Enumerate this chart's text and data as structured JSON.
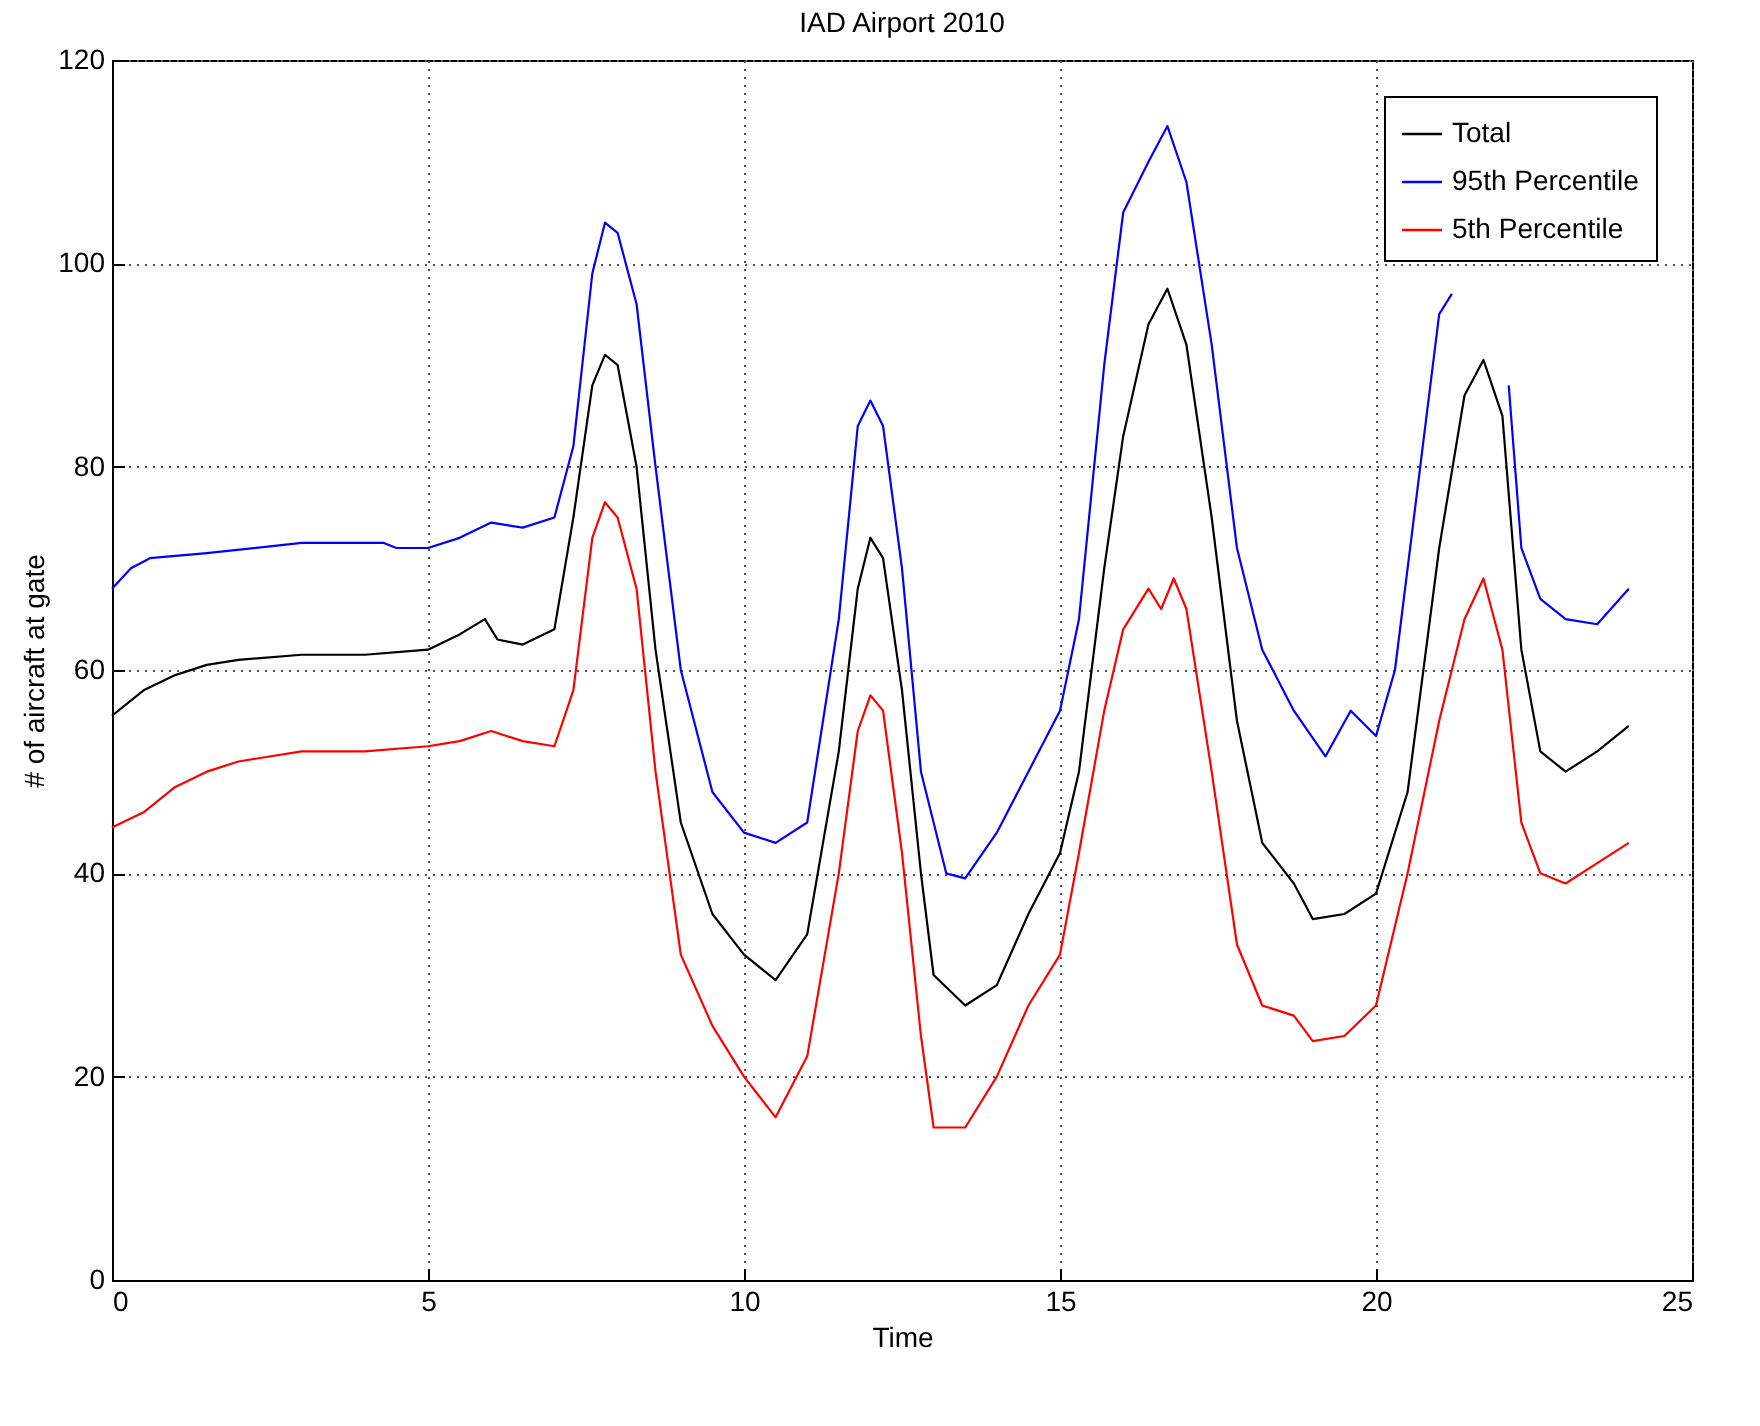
{
  "chart_data": {
    "type": "line",
    "title": "IAD Airport 2010",
    "xlabel": "Time",
    "ylabel": "# of aircraft at gate",
    "xlim": [
      0,
      25
    ],
    "xticks": [
      0,
      5,
      10,
      15,
      20,
      25
    ],
    "ylim": [
      0,
      120
    ],
    "yticks": [
      0,
      20,
      40,
      60,
      80,
      100,
      120
    ],
    "grid": true,
    "legend": "top right",
    "line_style": "solid",
    "series": [
      {
        "name": "Total",
        "color": "#000000",
        "x": [
          0,
          0.5,
          1,
          1.5,
          2,
          3,
          4,
          5,
          5.5,
          5.9,
          6.1,
          6.5,
          7,
          7.3,
          7.6,
          7.8,
          8,
          8.3,
          8.6,
          9,
          9.5,
          10,
          10.5,
          11,
          11.5,
          11.8,
          12,
          12.2,
          12.5,
          12.8,
          13,
          13.5,
          14,
          14.5,
          15,
          15.3,
          15.7,
          16,
          16.4,
          16.7,
          17,
          17.4,
          17.8,
          18.2,
          18.7,
          19,
          19.5,
          20,
          20.5,
          21,
          21.4,
          21.7,
          22,
          22.3,
          22.6,
          23,
          23.5,
          24
        ],
        "values": [
          55.5,
          58,
          59.5,
          60.5,
          61,
          61.5,
          61.5,
          62,
          63.5,
          65,
          63,
          62.5,
          64,
          75,
          88,
          91,
          90,
          80,
          62,
          45,
          36,
          32,
          29.5,
          34,
          52,
          68,
          73,
          71,
          58,
          40,
          30,
          27,
          29,
          36,
          42,
          50,
          70,
          83,
          94,
          97.5,
          92,
          75,
          55,
          43,
          39,
          35.5,
          36,
          38,
          48,
          72,
          87,
          90.5,
          85,
          62,
          52,
          50,
          52,
          54.5
        ]
      },
      {
        "name": "95th Percentile",
        "color": "#0000ff",
        "x": [
          0,
          0.3,
          0.6,
          1.5,
          3,
          4.3,
          4.5,
          5,
          5.5,
          6,
          6.5,
          7,
          7.3,
          7.6,
          7.8,
          8,
          8.3,
          8.6,
          9,
          9.5,
          10,
          10.5,
          11,
          11.5,
          11.8,
          12,
          12.2,
          12.5,
          12.8,
          13.2,
          13.5,
          14,
          14.5,
          15,
          15.3,
          15.7,
          16,
          16.4,
          16.7,
          17,
          17.4,
          17.8,
          18.2,
          18.7,
          19.2,
          19.6,
          20,
          20.3,
          20.7,
          21,
          21.2,
          21.7,
          22.1,
          22.3,
          22.6,
          23,
          23.5,
          24
        ],
        "values": [
          68,
          70,
          71,
          71.5,
          72.5,
          72.5,
          72,
          72,
          73,
          74.5,
          74,
          75,
          82,
          99,
          104,
          103,
          96,
          80,
          60,
          48,
          44,
          43,
          45,
          65,
          84,
          86.5,
          84,
          70,
          50,
          40,
          39.5,
          44,
          50,
          56,
          65,
          90,
          105,
          110,
          113.5,
          108,
          92,
          72,
          62,
          56,
          51.5,
          56,
          53.5,
          60,
          80,
          95,
          97,
          null,
          88,
          72,
          67,
          65,
          64.5,
          68
        ]
      },
      {
        "name": "5th Percentile",
        "color": "#ff0000",
        "x": [
          0,
          0.5,
          1,
          1.5,
          2,
          3,
          4,
          5,
          5.5,
          6,
          6.5,
          7,
          7.3,
          7.6,
          7.8,
          8,
          8.3,
          8.6,
          9,
          9.5,
          10,
          10.5,
          11,
          11.5,
          11.8,
          12,
          12.2,
          12.5,
          12.8,
          13,
          13.5,
          14,
          14.5,
          15,
          15.3,
          15.7,
          16,
          16.4,
          16.6,
          16.8,
          17,
          17.4,
          17.8,
          18.2,
          18.7,
          19,
          19.5,
          20,
          20.5,
          21,
          21.4,
          21.7,
          22,
          22.3,
          22.6,
          23,
          23.5,
          24
        ],
        "values": [
          44.5,
          46,
          48.5,
          50,
          51,
          52,
          52,
          52.5,
          53,
          54,
          53,
          52.5,
          58,
          73,
          76.5,
          75,
          68,
          50,
          32,
          25,
          20,
          16,
          22,
          40,
          54,
          57.5,
          56,
          42,
          24,
          15,
          15,
          20,
          27,
          32,
          42,
          56,
          64,
          68,
          66,
          69,
          66,
          50,
          33,
          27,
          26,
          23.5,
          24,
          27,
          40,
          55,
          65,
          69,
          62,
          45,
          40,
          39,
          41,
          43
        ]
      }
    ]
  }
}
